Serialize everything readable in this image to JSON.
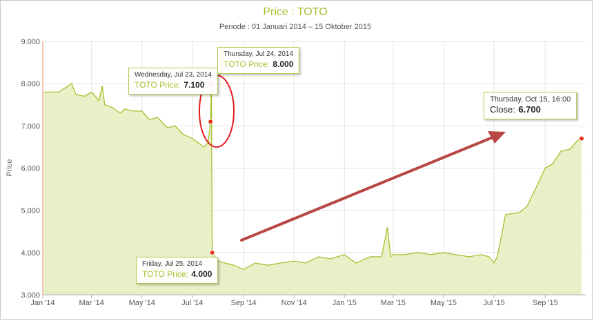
{
  "chart_data": {
    "type": "area",
    "title": "Price : TOTO",
    "subtitle": "Periode : 01 Januari 2014 – 15 Oktober 2015",
    "ylabel": "Price",
    "ylim": [
      3000,
      9000
    ],
    "yticks": [
      "3.000",
      "4.000",
      "5.000",
      "6.000",
      "7.000",
      "8.000",
      "9.000"
    ],
    "xticks": [
      "Jan '14",
      "Mar '14",
      "May '14",
      "Jul '14",
      "Sep '14",
      "Nov '14",
      "Jan '15",
      "Mar '15",
      "May '15",
      "Jul '15",
      "Sep '15"
    ],
    "grid": true,
    "series": [
      {
        "name": "TOTO Price",
        "color": "#a7bf2d",
        "fill": "#e9f0c8",
        "x": [
          "2014-01-02",
          "2014-01-20",
          "2014-02-05",
          "2014-02-10",
          "2014-02-20",
          "2014-03-01",
          "2014-03-10",
          "2014-03-14",
          "2014-03-17",
          "2014-03-25",
          "2014-04-05",
          "2014-04-10",
          "2014-04-20",
          "2014-05-01",
          "2014-05-10",
          "2014-05-20",
          "2014-06-01",
          "2014-06-10",
          "2014-06-20",
          "2014-07-01",
          "2014-07-08",
          "2014-07-15",
          "2014-07-20",
          "2014-07-23",
          "2014-07-24",
          "2014-07-25",
          "2014-08-01",
          "2014-08-10",
          "2014-08-20",
          "2014-09-01",
          "2014-09-15",
          "2014-10-01",
          "2014-10-15",
          "2014-11-01",
          "2014-11-15",
          "2014-12-01",
          "2014-12-15",
          "2015-01-01",
          "2015-01-15",
          "2015-02-01",
          "2015-02-15",
          "2015-02-22",
          "2015-02-26",
          "2015-03-01",
          "2015-03-15",
          "2015-04-01",
          "2015-04-15",
          "2015-05-01",
          "2015-05-15",
          "2015-06-01",
          "2015-06-15",
          "2015-06-25",
          "2015-07-01",
          "2015-07-05",
          "2015-07-15",
          "2015-08-01",
          "2015-08-10",
          "2015-08-20",
          "2015-09-01",
          "2015-09-10",
          "2015-09-20",
          "2015-10-01",
          "2015-10-10",
          "2015-10-15"
        ],
        "y": [
          7800,
          7800,
          8000,
          7750,
          7700,
          7800,
          7600,
          7950,
          7500,
          7450,
          7300,
          7400,
          7350,
          7350,
          7150,
          7200,
          6950,
          7000,
          6800,
          6700,
          6600,
          6500,
          6600,
          7100,
          8000,
          4000,
          3800,
          3750,
          3700,
          3600,
          3750,
          3700,
          3750,
          3800,
          3750,
          3900,
          3850,
          3950,
          3750,
          3900,
          3900,
          4600,
          3900,
          3950,
          3950,
          4000,
          3950,
          4000,
          3950,
          3900,
          3950,
          3900,
          3750,
          3900,
          4900,
          4950,
          5100,
          5500,
          6000,
          6100,
          6400,
          6450,
          6650,
          6700
        ]
      }
    ],
    "tooltips": [
      {
        "date": "Wednesday, Jul 23, 2014",
        "label": "TOTO Price:",
        "value": "7.100"
      },
      {
        "date": "Thursday, Jul 24, 2014",
        "label": "TOTO Price:",
        "value": "8.000"
      },
      {
        "date": "Friday, Jul 25, 2014",
        "label": "TOTO Price:",
        "value": "4.000"
      },
      {
        "date": "Thursday, Oct 15, 16:00",
        "label": "Close:",
        "value": "6.700"
      }
    ]
  }
}
